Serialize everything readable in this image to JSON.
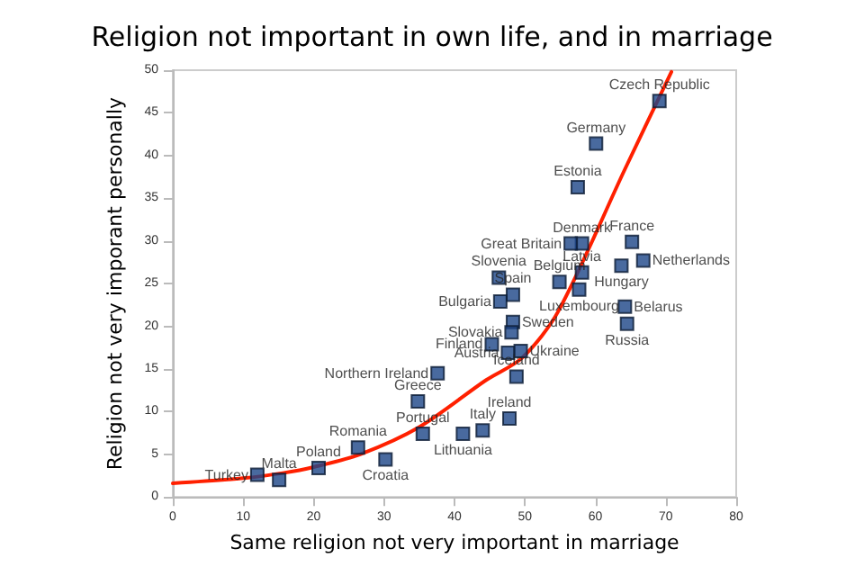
{
  "chart_data": {
    "type": "scatter",
    "title": "Religion not important in own life, and in marriage",
    "xlabel": "Same religion not very important in marriage",
    "ylabel": "Religion not very imporant personally",
    "xlim": [
      0,
      80
    ],
    "xticks": [
      0,
      10,
      20,
      30,
      40,
      50,
      60,
      70,
      80
    ],
    "ylim": [
      0,
      50
    ],
    "yticks": [
      0,
      5,
      10,
      15,
      20,
      25,
      30,
      35,
      40,
      45,
      50
    ],
    "grid": false,
    "marker": "square",
    "series": [
      {
        "color": "#1c4587",
        "x": [
          69.1,
          60.1,
          57.5,
          58.1,
          56.5,
          65.2,
          66.8,
          63.7,
          58.1,
          54.9,
          46.3,
          48.3,
          46.5,
          57.7,
          64.2,
          64.5,
          48.3,
          48.1,
          45.3,
          47.6,
          49.4,
          48.8,
          47.8,
          37.6,
          34.8,
          35.5,
          41.2,
          44.0,
          26.3,
          30.2,
          20.7,
          15.1,
          12.0
        ],
        "values": [
          46.4,
          41.4,
          36.3,
          29.7,
          29.7,
          29.9,
          27.7,
          27.1,
          26.3,
          25.2,
          25.7,
          23.7,
          22.9,
          24.3,
          22.3,
          20.3,
          20.5,
          19.3,
          17.9,
          16.9,
          17.1,
          14.1,
          9.2,
          14.5,
          11.2,
          7.4,
          7.4,
          7.8,
          5.8,
          4.4,
          3.4,
          2.0,
          2.6
        ]
      },
      {
        "type": "line",
        "color": "#ff2000",
        "line_style": "solid",
        "marker": "none",
        "x": [
          0,
          10,
          15.6,
          20,
          26.6,
          35,
          44.5,
          49.6,
          54.7,
          64.2,
          70.8
        ],
        "values": [
          1.6,
          2.2,
          2.8,
          3.5,
          5.0,
          8.2,
          13.7,
          16.3,
          21.7,
          38.4,
          49.8
        ]
      }
    ],
    "annotations": [
      {
        "text": "Czech Republic",
        "x": 69.1,
        "y": 46.4
      },
      {
        "text": "Germany",
        "x": 60.1,
        "y": 41.4
      },
      {
        "text": "Estonia",
        "x": 57.5,
        "y": 36.3
      },
      {
        "text": "Denmark",
        "x": 58.1,
        "y": 29.7
      },
      {
        "text": "Great Britain",
        "x": 56.5,
        "y": 29.7
      },
      {
        "text": "France",
        "x": 65.2,
        "y": 29.9
      },
      {
        "text": "Netherlands",
        "x": 66.8,
        "y": 27.7
      },
      {
        "text": "Hungary",
        "x": 63.7,
        "y": 27.1
      },
      {
        "text": "Latvia",
        "x": 58.1,
        "y": 26.3
      },
      {
        "text": "Belgium",
        "x": 54.9,
        "y": 25.2
      },
      {
        "text": "Slovenia",
        "x": 46.3,
        "y": 25.7
      },
      {
        "text": "Spain",
        "x": 48.3,
        "y": 23.7
      },
      {
        "text": "Bulgaria",
        "x": 46.5,
        "y": 22.9
      },
      {
        "text": "Luxembourg",
        "x": 57.7,
        "y": 24.3
      },
      {
        "text": "Belarus",
        "x": 64.2,
        "y": 22.3
      },
      {
        "text": "Russia",
        "x": 64.5,
        "y": 20.3
      },
      {
        "text": "Sweden",
        "x": 48.3,
        "y": 20.5
      },
      {
        "text": "Slovakia",
        "x": 48.1,
        "y": 19.3
      },
      {
        "text": "Finland",
        "x": 45.3,
        "y": 17.9
      },
      {
        "text": "Austria",
        "x": 47.6,
        "y": 16.9
      },
      {
        "text": "Ukraine",
        "x": 49.4,
        "y": 17.1
      },
      {
        "text": "Iceland",
        "x": 48.8,
        "y": 14.1
      },
      {
        "text": "Ireland",
        "x": 47.8,
        "y": 9.2
      },
      {
        "text": "Northern Ireland",
        "x": 37.6,
        "y": 14.5
      },
      {
        "text": "Greece",
        "x": 34.8,
        "y": 11.2
      },
      {
        "text": "Portugal",
        "x": 35.5,
        "y": 7.4
      },
      {
        "text": "Lithuania",
        "x": 41.2,
        "y": 7.4
      },
      {
        "text": "Italy",
        "x": 44.0,
        "y": 7.8
      },
      {
        "text": "Romania",
        "x": 26.3,
        "y": 5.8
      },
      {
        "text": "Croatia",
        "x": 30.2,
        "y": 4.4
      },
      {
        "text": "Poland",
        "x": 20.7,
        "y": 3.4
      },
      {
        "text": "Malta",
        "x": 15.1,
        "y": 2.0
      },
      {
        "text": "Turkey",
        "x": 12.0,
        "y": 2.6
      }
    ]
  }
}
